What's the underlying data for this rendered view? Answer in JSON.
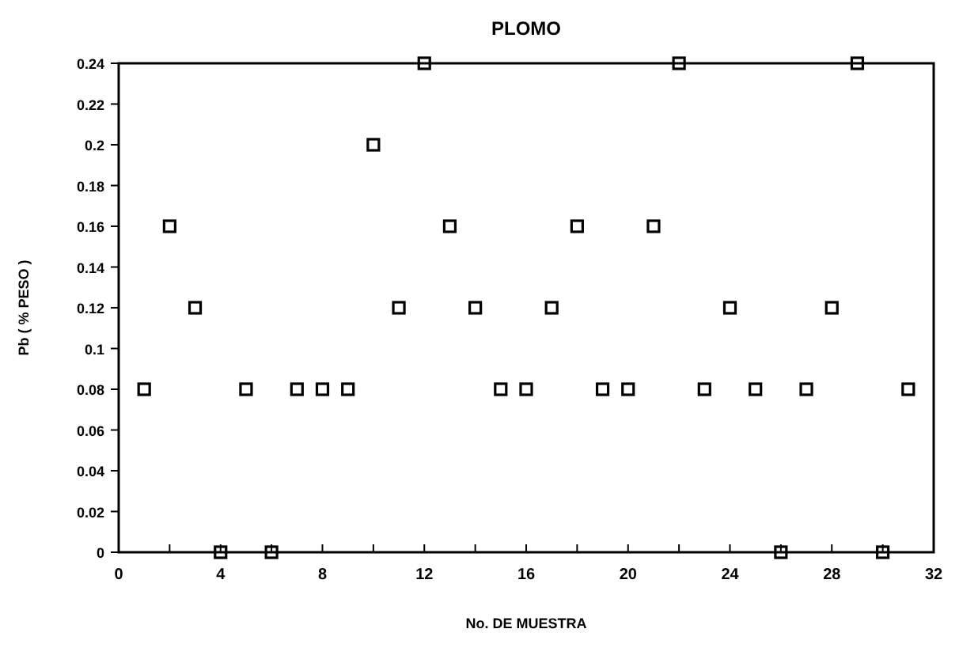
{
  "chart_data": {
    "type": "scatter",
    "title": "PLOMO",
    "xlabel": "No. DE MUESTRA",
    "ylabel": "Pb ( % PESO )",
    "marker": "square",
    "grid": false,
    "x": [
      1,
      2,
      3,
      4,
      5,
      6,
      7,
      8,
      9,
      10,
      11,
      12,
      13,
      14,
      15,
      16,
      17,
      18,
      19,
      20,
      21,
      22,
      23,
      24,
      25,
      26,
      27,
      28,
      29,
      30,
      31
    ],
    "values": [
      0.08,
      0.16,
      0.12,
      0,
      0.08,
      0,
      0.08,
      0.08,
      0.08,
      0.2,
      0.12,
      0.24,
      0.16,
      0.12,
      0.08,
      0.08,
      0.12,
      0.16,
      0.08,
      0.08,
      0.16,
      0.24,
      0.08,
      0.12,
      0.08,
      0,
      0.08,
      0.12,
      0.24,
      0,
      0.08
    ],
    "color": "#000000",
    "xlim": [
      0,
      32
    ],
    "xticks": [
      0,
      {
        "value": 2,
        "label": null
      },
      4,
      {
        "value": 6,
        "label": null
      },
      8,
      {
        "value": 10,
        "label": null
      },
      12,
      {
        "value": 14,
        "label": null
      },
      16,
      {
        "value": 18,
        "label": null
      },
      20,
      {
        "value": 22,
        "label": null
      },
      24,
      {
        "value": 26,
        "label": null
      },
      28,
      {
        "value": 30,
        "label": null
      },
      32
    ],
    "ylim": [
      0,
      0.24
    ],
    "yticks": [
      0,
      0.02,
      0.04,
      0.06,
      0.08,
      0.1,
      0.12,
      0.14,
      0.16,
      0.18,
      0.2,
      0.22,
      0.24
    ]
  }
}
